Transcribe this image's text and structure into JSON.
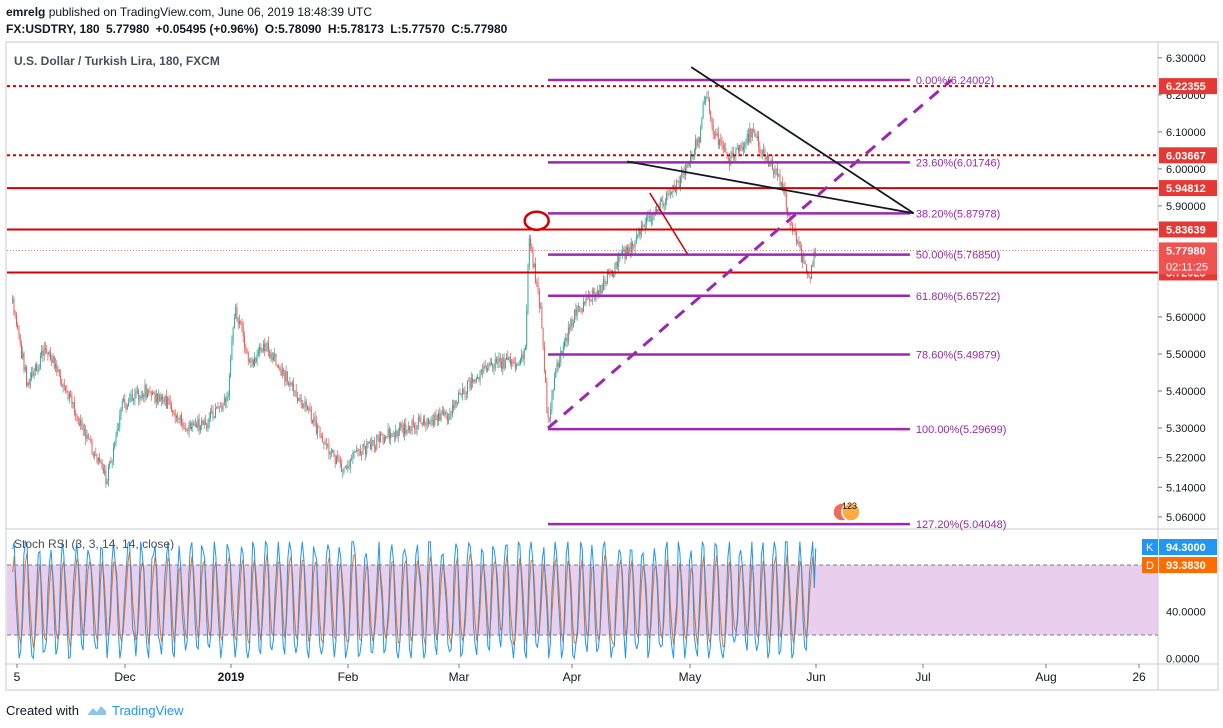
{
  "header": {
    "line1_user": "emrelg",
    "line1_text": "published on TradingView.com, June 06, 2019 18:48:39 UTC",
    "symbol": "FX:USDTRY, 180",
    "last": "5.77980",
    "change": "+0.05495 (+0.96%)",
    "ohlc_o": "O:5.78090",
    "ohlc_h": "H:5.78173",
    "ohlc_l": "L:5.77570",
    "ohlc_c": "C:5.77980"
  },
  "footer": {
    "created_with": "Created with",
    "brand": "TradingView"
  },
  "colors": {
    "up": "#26a69a",
    "down": "#ef5350",
    "fib": "#9c27b0",
    "hline": "#d50000",
    "trend": "#131722",
    "k_line": "#2196f3",
    "d_line": "#ff6d00",
    "rsi_band": "#e1bee7"
  },
  "chart_data": [
    {
      "type": "candlestick",
      "title": "U.S. Dollar / Turkish Lira, 180, FXCM",
      "x_ticks": [
        "5",
        "Dec",
        "2019",
        "Feb",
        "Mar",
        "Apr",
        "May",
        "Jun",
        "Jul",
        "Aug",
        "26"
      ],
      "y_ticks": [
        "6.30000",
        "6.20000",
        "6.10000",
        "6.00000",
        "5.90000",
        "5.83639",
        "5.77980",
        "5.72025",
        "5.60000",
        "5.50000",
        "5.40000",
        "5.30000",
        "5.22000",
        "5.14000",
        "5.06000"
      ],
      "ylim": [
        5.03,
        6.34
      ],
      "price_path": [
        {
          "x": "2018-11-05",
          "y": 5.64
        },
        {
          "x": "2018-11-09",
          "y": 5.41
        },
        {
          "x": "2018-11-14",
          "y": 5.52
        },
        {
          "x": "2018-11-20",
          "y": 5.38
        },
        {
          "x": "2018-11-27",
          "y": 5.22
        },
        {
          "x": "2018-11-30",
          "y": 5.16
        },
        {
          "x": "2018-12-04",
          "y": 5.36
        },
        {
          "x": "2018-12-10",
          "y": 5.4
        },
        {
          "x": "2018-12-17",
          "y": 5.36
        },
        {
          "x": "2018-12-21",
          "y": 5.3
        },
        {
          "x": "2018-12-26",
          "y": 5.31
        },
        {
          "x": "2019-01-01",
          "y": 5.38
        },
        {
          "x": "2019-01-03",
          "y": 5.63
        },
        {
          "x": "2019-01-07",
          "y": 5.47
        },
        {
          "x": "2019-01-11",
          "y": 5.52
        },
        {
          "x": "2019-01-17",
          "y": 5.43
        },
        {
          "x": "2019-01-23",
          "y": 5.33
        },
        {
          "x": "2019-01-31",
          "y": 5.19
        },
        {
          "x": "2019-02-06",
          "y": 5.24
        },
        {
          "x": "2019-02-14",
          "y": 5.29
        },
        {
          "x": "2019-02-21",
          "y": 5.32
        },
        {
          "x": "2019-02-28",
          "y": 5.33
        },
        {
          "x": "2019-03-06",
          "y": 5.42
        },
        {
          "x": "2019-03-12",
          "y": 5.47
        },
        {
          "x": "2019-03-19",
          "y": 5.48
        },
        {
          "x": "2019-03-21",
          "y": 5.5
        },
        {
          "x": "2019-03-22",
          "y": 5.82
        },
        {
          "x": "2019-03-25",
          "y": 5.62
        },
        {
          "x": "2019-03-27",
          "y": 5.31
        },
        {
          "x": "2019-03-29",
          "y": 5.45
        },
        {
          "x": "2019-04-03",
          "y": 5.61
        },
        {
          "x": "2019-04-10",
          "y": 5.68
        },
        {
          "x": "2019-04-17",
          "y": 5.78
        },
        {
          "x": "2019-04-24",
          "y": 5.88
        },
        {
          "x": "2019-04-30",
          "y": 5.95
        },
        {
          "x": "2019-05-06",
          "y": 6.08
        },
        {
          "x": "2019-05-08",
          "y": 6.22
        },
        {
          "x": "2019-05-10",
          "y": 6.1
        },
        {
          "x": "2019-05-14",
          "y": 6.02
        },
        {
          "x": "2019-05-20",
          "y": 6.1
        },
        {
          "x": "2019-05-24",
          "y": 6.03
        },
        {
          "x": "2019-05-28",
          "y": 5.96
        },
        {
          "x": "2019-05-30",
          "y": 5.87
        },
        {
          "x": "2019-06-03",
          "y": 5.74
        },
        {
          "x": "2019-06-04",
          "y": 5.69
        },
        {
          "x": "2019-06-06",
          "y": 5.78
        }
      ],
      "horizontal_levels": [
        {
          "value": 6.22355,
          "label": "6.22355",
          "style": "dotted"
        },
        {
          "value": 6.03667,
          "label": "6.03667",
          "style": "dotted"
        },
        {
          "value": 5.94812,
          "label": "5.94812",
          "style": "solid"
        },
        {
          "value": 5.83639,
          "label": "5.83639",
          "style": "solid"
        },
        {
          "value": 5.72025,
          "label": "5.72025",
          "style": "solid"
        }
      ],
      "last_price": {
        "value": 5.7798,
        "label": "5.77980",
        "countdown": "02:11:25"
      },
      "fibonacci": {
        "start": "2019-03-27",
        "end": "2019-07-01",
        "levels": [
          {
            "value": 6.24002,
            "label": "0.00%(6.24002)"
          },
          {
            "value": 6.01746,
            "label": "23.60%(6.01746)"
          },
          {
            "value": 5.87978,
            "label": "38.20%(5.87978)"
          },
          {
            "value": 5.7685,
            "label": "50.00%(5.76850)"
          },
          {
            "value": 5.65722,
            "label": "61.80%(5.65722)"
          },
          {
            "value": 5.49879,
            "label": "78.60%(5.49879)"
          },
          {
            "value": 5.29699,
            "label": "100.00%(5.29699)"
          },
          {
            "value": 5.04048,
            "label": "127.20%(5.04048)"
          }
        ]
      },
      "trend_lines": [
        {
          "x1": "2019-05-04",
          "y1": 6.275,
          "x2": "2019-07-02",
          "y2": 5.88
        },
        {
          "x1": "2019-04-17",
          "y1": 6.02,
          "x2": "2019-07-02",
          "y2": 5.88
        }
      ],
      "dashed_lines": [
        {
          "x1": "2019-03-27",
          "y1": 5.3,
          "x2": "2019-07-12",
          "y2": 6.24
        }
      ],
      "red_lines": [
        {
          "x1": "2019-04-23",
          "y1": 5.935,
          "x2": "2019-05-03",
          "y2": 5.77
        }
      ],
      "events_badge": "123"
    },
    {
      "type": "line",
      "title": "Stoch RSI (3, 3, 14, 14, close)",
      "y_ticks": [
        "40.0000",
        "0.0000"
      ],
      "ylim": [
        -4,
        110
      ],
      "band": [
        20,
        80
      ],
      "series": [
        {
          "name": "K",
          "last_label": "94.3000",
          "last": 94.3
        },
        {
          "name": "D",
          "last_label": "93.3830",
          "last": 93.383
        }
      ]
    }
  ]
}
